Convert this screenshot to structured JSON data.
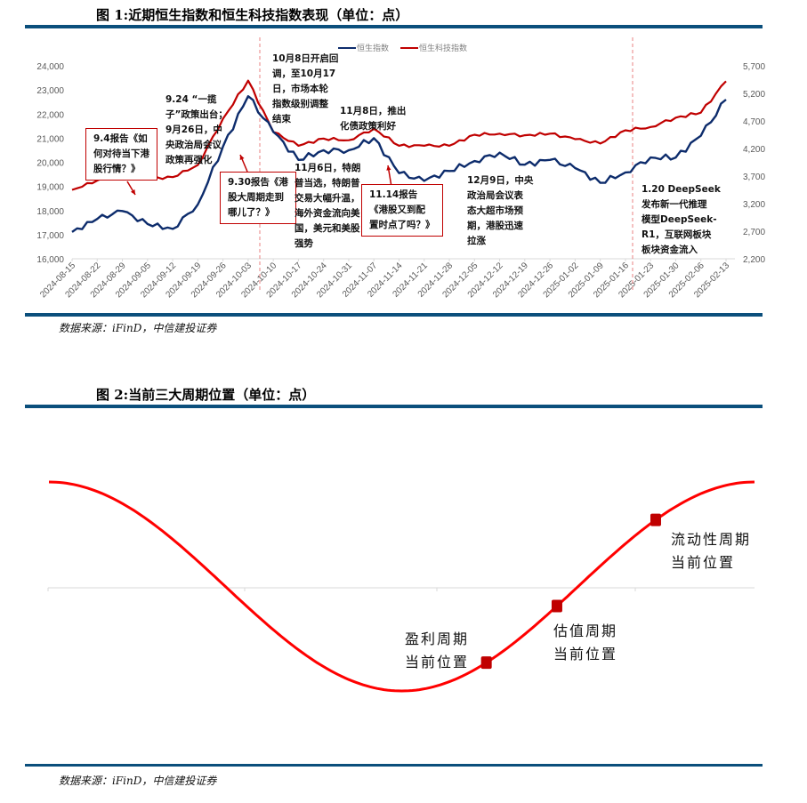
{
  "figure1": {
    "title": "图 1:近期恒生指数和恒生科技指数表现（单位：点）",
    "source": "数据来源：iFinD，中信建投证券",
    "legend": [
      {
        "label": "恒生指数",
        "color": "#0d2c6c"
      },
      {
        "label": "恒生科技指数",
        "color": "#c00000"
      }
    ],
    "annotations": [
      {
        "id": "a1",
        "text": "9.4报告《如\n何对待当下港\n股行情？》",
        "boxed": true
      },
      {
        "id": "a2",
        "text": "9.24 “一揽\n子”政策出台；\n9月26日，中\n央政治局会议\n政策再强化",
        "boxed": false
      },
      {
        "id": "a3",
        "text": "9.30报告《港\n股大周期走到\n哪儿了？》",
        "boxed": true
      },
      {
        "id": "a4",
        "text": "10月8日开启回\n调，至10月17\n日，市场本轮\n指数级别调整\n结束",
        "boxed": false
      },
      {
        "id": "a5",
        "text": "11月6日，特朗\n普当选，特朗普\n交易大幅升温，\n海外资金流向美\n国，美元和美股\n强势",
        "boxed": false
      },
      {
        "id": "a6",
        "text": "11月8日，推出\n化债政策利好",
        "boxed": false
      },
      {
        "id": "a7",
        "text": "11.14报告\n《港股又到配\n置时点了吗？》",
        "boxed": true
      },
      {
        "id": "a8",
        "text": "12月9日，中央\n政治局会议表\n态大超市场预\n期，港股迅速\n拉涨",
        "boxed": false
      },
      {
        "id": "a9",
        "text": "1.20 DeepSeek\n发布新一代推理\n模型DeepSeek-\nR1，互联网板块\n板块资金流入",
        "boxed": false
      }
    ]
  },
  "chart_data": [
    {
      "type": "line",
      "title": "图 1:近期恒生指数和恒生科技指数表现（单位：点）",
      "xlabel": "",
      "ylabel_left": "恒生指数",
      "ylabel_right": "恒生科技指数",
      "ylim_left": [
        16000,
        24000
      ],
      "yticks_left": [
        "16,000",
        "17,000",
        "18,000",
        "19,000",
        "20,000",
        "21,000",
        "22,000",
        "23,000",
        "24,000"
      ],
      "ylim_right": [
        2200,
        5700
      ],
      "yticks_right": [
        "2,200",
        "2,700",
        "3,200",
        "3,700",
        "4,200",
        "4,700",
        "5,200",
        "5,700"
      ],
      "grid": false,
      "legend_position": "top",
      "categories": [
        "2024-08-15",
        "2024-08-22",
        "2024-08-29",
        "2024-09-05",
        "2024-09-12",
        "2024-09-19",
        "2024-09-26",
        "2024-10-03",
        "2024-10-10",
        "2024-10-17",
        "2024-10-24",
        "2024-10-31",
        "2024-11-07",
        "2024-11-14",
        "2024-11-21",
        "2024-11-28",
        "2024-12-05",
        "2024-12-12",
        "2024-12-19",
        "2024-12-26",
        "2025-01-02",
        "2025-01-09",
        "2025-01-16",
        "2025-01-23",
        "2025-01-30",
        "2025-02-06",
        "2025-02-13"
      ],
      "vlines": [
        "2024-10-08",
        "2025-01-20"
      ],
      "series": [
        {
          "name": "恒生指数",
          "axis": "left",
          "color": "#0d2c6c",
          "values": [
            17110,
            17650,
            17980,
            17440,
            17240,
            18250,
            20650,
            22740,
            21260,
            20100,
            20500,
            20500,
            21000,
            19550,
            19230,
            19640,
            20050,
            20400,
            19900,
            20100,
            19760,
            19150,
            19580,
            20200,
            20200,
            21100,
            22600
          ]
        },
        {
          "name": "恒生科技指数",
          "axis": "right",
          "color": "#c00000",
          "values": [
            3450,
            3620,
            3730,
            3650,
            3680,
            3900,
            4740,
            5430,
            4500,
            4250,
            4380,
            4350,
            4560,
            4250,
            4250,
            4250,
            4450,
            4470,
            4440,
            4470,
            4370,
            4290,
            4530,
            4590,
            4760,
            4850,
            5420
          ]
        }
      ]
    },
    {
      "type": "line",
      "title": "图 2:当前三大周期位置（单位：点）",
      "xlabel": "",
      "ylabel": "",
      "description": "Stylized cosine cycle curve (one full period: peak → trough → peak) with three marked current positions",
      "curve": "cos",
      "points": [
        {
          "label": "盈利周期\n当前位置",
          "phase": 0.62
        },
        {
          "label": "估值周期\n当前位置",
          "phase": 0.72
        },
        {
          "label": "流动性周期\n当前位置",
          "phase": 0.86
        }
      ]
    }
  ],
  "figure2": {
    "title": "图 2:当前三大周期位置（单位：点）",
    "source": "数据来源：iFinD，中信建投证券",
    "line_color": "#ff0000",
    "marker_color": "#c00000"
  }
}
